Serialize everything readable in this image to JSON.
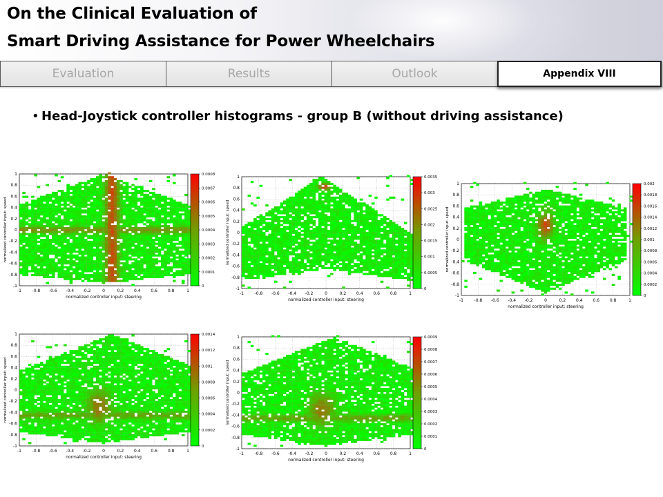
{
  "header": {
    "title_line1": "On the Clinical Evaluation of",
    "title_line2": "Smart Driving Assistance for Power Wheelchairs"
  },
  "nav": {
    "tabs": [
      {
        "label": "Evaluation"
      },
      {
        "label": "Results"
      },
      {
        "label": "Outlook"
      }
    ],
    "active_tab": "Appendix VIII"
  },
  "content": {
    "bullet": "Head-Joystick controller histograms - group B (without driving assistance)"
  },
  "chart_data": [
    {
      "type": "heatmap",
      "xlabel": "normalized controller input: steering",
      "ylabel": "normalized controller input: speed",
      "xlim": [
        -1,
        1
      ],
      "ylim": [
        -1,
        1
      ],
      "x_ticks": [
        "-1",
        "-0.8",
        "-0.6",
        "-0.4",
        "-0.2",
        "0",
        "0.2",
        "0.4",
        "0.6",
        "0.8",
        "1"
      ],
      "y_ticks": [
        "-1",
        "-0.8",
        "-0.6",
        "-0.4",
        "-0.2",
        "0",
        "0.2",
        "0.4",
        "0.6",
        "0.8",
        "1"
      ],
      "colorbar_ticks": [
        "0",
        "0.0001",
        "0.0002",
        "0.0003",
        "0.0004",
        "0.0005",
        "0.0006",
        "0.0007",
        "0.0008"
      ],
      "colorbar_range": [
        0,
        0.0008
      ],
      "colormap": [
        "#00ff00",
        "#ff0000"
      ],
      "grid": true,
      "shape": "diamond"
    },
    {
      "type": "heatmap",
      "xlabel": "normalized controller input: steering",
      "ylabel": "normalized controller input: speed",
      "xlim": [
        -1,
        1
      ],
      "ylim": [
        -1,
        1
      ],
      "x_ticks": [
        "-1",
        "-0.8",
        "-0.6",
        "-0.4",
        "-0.2",
        "0",
        "0.2",
        "0.4",
        "0.6",
        "0.8",
        "1"
      ],
      "y_ticks": [
        "-1",
        "-0.8",
        "-0.6",
        "-0.4",
        "-0.2",
        "0",
        "0.2",
        "0.4",
        "0.6",
        "0.8",
        "1"
      ],
      "colorbar_ticks": [
        "0",
        "0.0005",
        "0.001",
        "0.0015",
        "0.002",
        "0.0025",
        "0.003",
        "0.0035"
      ],
      "colorbar_range": [
        0,
        0.0035
      ],
      "colormap": [
        "#00ff00",
        "#ff0000"
      ],
      "grid": true,
      "shape": "triangle"
    },
    {
      "type": "heatmap",
      "xlabel": "normalized controller input: steering",
      "ylabel": "normalized controller input: speed",
      "xlim": [
        -1,
        1
      ],
      "ylim": [
        -1,
        1
      ],
      "x_ticks": [
        "-1",
        "-0.8",
        "-0.6",
        "-0.4",
        "-0.2",
        "0",
        "0.2",
        "0.4",
        "0.6",
        "0.8",
        "1"
      ],
      "y_ticks": [
        "-1",
        "-0.8",
        "-0.6",
        "-0.4",
        "-0.2",
        "0",
        "0.2",
        "0.4",
        "0.6",
        "0.8",
        "1"
      ],
      "colorbar_ticks": [
        "0",
        "0.0002",
        "0.0004",
        "0.0006",
        "0.0008",
        "0.001",
        "0.0012",
        "0.0014",
        "0.0016",
        "0.0018",
        "0.002"
      ],
      "colorbar_range": [
        0,
        0.002
      ],
      "colormap": [
        "#00ff00",
        "#ff0000"
      ],
      "grid": true,
      "shape": "pentagon"
    },
    {
      "type": "heatmap",
      "xlabel": "normalized controller input: steering",
      "ylabel": "normalized controller input: speed",
      "xlim": [
        -1,
        1
      ],
      "ylim": [
        -1,
        1
      ],
      "x_ticks": [
        "-1",
        "-0.8",
        "-0.6",
        "-0.4",
        "-0.2",
        "0",
        "0.2",
        "0.4",
        "0.6",
        "0.8",
        "1"
      ],
      "y_ticks": [
        "-1",
        "-0.8",
        "-0.6",
        "-0.4",
        "-0.2",
        "0",
        "0.2",
        "0.4",
        "0.6",
        "0.8",
        "1"
      ],
      "colorbar_ticks": [
        "0",
        "0.0002",
        "0.0004",
        "0.0006",
        "0.0008",
        "0.001",
        "0.0012",
        "0.0014"
      ],
      "colorbar_range": [
        0,
        0.0014
      ],
      "colormap": [
        "#00ff00",
        "#ff0000"
      ],
      "grid": true,
      "shape": "blob"
    },
    {
      "type": "heatmap",
      "xlabel": "normalized controller input: steering",
      "ylabel": "normalized controller input: speed",
      "xlim": [
        -1,
        1
      ],
      "ylim": [
        -1,
        1
      ],
      "x_ticks": [
        "-1",
        "-0.8",
        "-0.6",
        "-0.4",
        "-0.2",
        "0",
        "0.2",
        "0.4",
        "0.6",
        "0.8",
        "1"
      ],
      "y_ticks": [
        "-1",
        "-0.8",
        "-0.6",
        "-0.4",
        "-0.2",
        "0",
        "0.2",
        "0.4",
        "0.6",
        "0.8",
        "1"
      ],
      "colorbar_ticks": [
        "0",
        "0.0001",
        "0.0002",
        "0.0003",
        "0.0004",
        "0.0005",
        "0.0006",
        "0.0007",
        "0.0008",
        "0.0009"
      ],
      "colorbar_range": [
        0,
        0.0009
      ],
      "colormap": [
        "#00ff00",
        "#ff0000"
      ],
      "grid": true,
      "shape": "blob"
    }
  ]
}
